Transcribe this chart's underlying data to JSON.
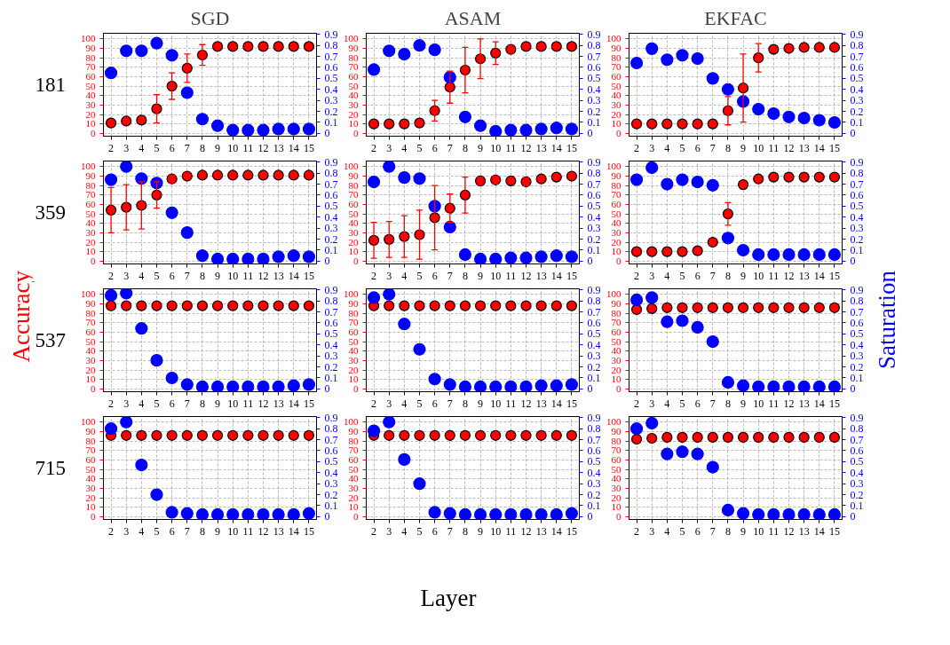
{
  "chart_data": [
    {
      "type": "scatter",
      "title": "SGD",
      "annotations": [
        "181"
      ],
      "x": [
        2,
        3,
        4,
        5,
        6,
        7,
        8,
        9,
        10,
        11,
        12,
        13,
        14,
        15
      ],
      "xlim": [
        1.5,
        15.5
      ],
      "xticks": [
        2,
        3,
        4,
        5,
        6,
        7,
        8,
        9,
        10,
        11,
        12,
        13,
        14,
        15
      ],
      "ylim": [
        -3,
        106
      ],
      "yticks": [
        0,
        10,
        20,
        30,
        40,
        50,
        60,
        70,
        80,
        90,
        100
      ],
      "y2lim": [
        -0.025,
        0.91
      ],
      "y2ticks": [
        0,
        0.1,
        0.2,
        0.3,
        0.4,
        0.5,
        0.6,
        0.7,
        0.8,
        0.9
      ],
      "grid": true,
      "marker": "circle",
      "series": [
        {
          "color": "#ff0000",
          "values": [
            11,
            13,
            14,
            26,
            50,
            69,
            83,
            92,
            92,
            92,
            92,
            92,
            92,
            92
          ],
          "errors": [
            1,
            1,
            3,
            15,
            14,
            15,
            11,
            null,
            null,
            null,
            null,
            null,
            null,
            null
          ]
        },
        {
          "color": "#0000ff",
          "axis": "y2",
          "values": [
            0.55,
            0.75,
            0.75,
            0.82,
            0.71,
            0.37,
            0.13,
            0.07,
            0.03,
            0.03,
            0.03,
            0.04,
            0.04,
            0.04
          ]
        }
      ]
    },
    {
      "type": "scatter",
      "title": "ASAM",
      "x": [
        2,
        3,
        4,
        5,
        6,
        7,
        8,
        9,
        10,
        11,
        12,
        13,
        14,
        15
      ],
      "xlim": [
        1.5,
        15.5
      ],
      "xticks": [
        2,
        3,
        4,
        5,
        6,
        7,
        8,
        9,
        10,
        11,
        12,
        13,
        14,
        15
      ],
      "ylim": [
        -3,
        106
      ],
      "yticks": [
        0,
        10,
        20,
        30,
        40,
        50,
        60,
        70,
        80,
        90,
        100
      ],
      "y2lim": [
        -0.025,
        0.91
      ],
      "y2ticks": [
        0,
        0.1,
        0.2,
        0.3,
        0.4,
        0.5,
        0.6,
        0.7,
        0.8,
        0.9
      ],
      "grid": true,
      "marker": "circle",
      "series": [
        {
          "color": "#ff0000",
          "values": [
            10,
            10,
            10,
            11,
            24,
            49,
            67,
            79,
            85,
            89,
            92,
            92,
            92,
            92
          ],
          "errors": [
            null,
            null,
            null,
            1,
            11,
            17,
            24,
            21,
            12,
            4,
            null,
            null,
            null,
            null
          ]
        },
        {
          "color": "#0000ff",
          "axis": "y2",
          "values": [
            0.58,
            0.75,
            0.72,
            0.8,
            0.76,
            0.51,
            0.15,
            0.07,
            0.02,
            0.03,
            0.03,
            0.04,
            0.05,
            0.04
          ]
        }
      ]
    },
    {
      "type": "scatter",
      "title": "EKFAC",
      "x": [
        2,
        3,
        4,
        5,
        6,
        7,
        8,
        9,
        10,
        11,
        12,
        13,
        14,
        15
      ],
      "xlim": [
        1.5,
        15.5
      ],
      "xticks": [
        2,
        3,
        4,
        5,
        6,
        7,
        8,
        9,
        10,
        11,
        12,
        13,
        14,
        15
      ],
      "ylim": [
        -3,
        106
      ],
      "yticks": [
        0,
        10,
        20,
        30,
        40,
        50,
        60,
        70,
        80,
        90,
        100
      ],
      "y2lim": [
        -0.025,
        0.91
      ],
      "y2ticks": [
        0,
        0.1,
        0.2,
        0.3,
        0.4,
        0.5,
        0.6,
        0.7,
        0.8,
        0.9
      ],
      "grid": true,
      "marker": "circle",
      "series": [
        {
          "color": "#ff0000",
          "values": [
            10,
            10,
            10,
            10,
            10,
            10,
            24,
            48,
            80,
            89,
            90,
            91,
            91,
            91
          ],
          "errors": [
            null,
            null,
            null,
            null,
            null,
            null,
            15,
            36,
            15,
            null,
            null,
            null,
            null,
            null
          ]
        },
        {
          "color": "#0000ff",
          "axis": "y2",
          "values": [
            0.64,
            0.77,
            0.67,
            0.71,
            0.68,
            0.5,
            0.4,
            0.29,
            0.22,
            0.18,
            0.15,
            0.14,
            0.12,
            0.1
          ]
        }
      ]
    },
    {
      "type": "scatter",
      "annotations": [
        "359"
      ],
      "x": [
        2,
        3,
        4,
        5,
        6,
        7,
        8,
        9,
        10,
        11,
        12,
        13,
        14,
        15
      ],
      "xlim": [
        1.5,
        15.5
      ],
      "xticks": [
        2,
        3,
        4,
        5,
        6,
        7,
        8,
        9,
        10,
        11,
        12,
        13,
        14,
        15
      ],
      "ylim": [
        -3,
        106
      ],
      "yticks": [
        0,
        10,
        20,
        30,
        40,
        50,
        60,
        70,
        80,
        90,
        100
      ],
      "y2lim": [
        -0.025,
        0.91
      ],
      "y2ticks": [
        0,
        0.1,
        0.2,
        0.3,
        0.4,
        0.5,
        0.6,
        0.7,
        0.8,
        0.9
      ],
      "grid": true,
      "marker": "circle",
      "series": [
        {
          "color": "#ff0000",
          "values": [
            54,
            57,
            59,
            70,
            87,
            90,
            91,
            91,
            91,
            91,
            91,
            91,
            91,
            91
          ],
          "errors": [
            24,
            24,
            25,
            14,
            4,
            null,
            null,
            null,
            null,
            null,
            null,
            null,
            null,
            null
          ]
        },
        {
          "color": "#0000ff",
          "axis": "y2",
          "values": [
            0.74,
            0.86,
            0.75,
            0.71,
            0.44,
            0.26,
            0.05,
            0.02,
            0.02,
            0.02,
            0.02,
            0.04,
            0.05,
            0.04
          ]
        }
      ]
    },
    {
      "type": "scatter",
      "x": [
        2,
        3,
        4,
        5,
        6,
        7,
        8,
        9,
        10,
        11,
        12,
        13,
        14,
        15
      ],
      "xlim": [
        1.5,
        15.5
      ],
      "xticks": [
        2,
        3,
        4,
        5,
        6,
        7,
        8,
        9,
        10,
        11,
        12,
        13,
        14,
        15
      ],
      "ylim": [
        -3,
        106
      ],
      "yticks": [
        0,
        10,
        20,
        30,
        40,
        50,
        60,
        70,
        80,
        90,
        100
      ],
      "y2lim": [
        -0.025,
        0.91
      ],
      "y2ticks": [
        0,
        0.1,
        0.2,
        0.3,
        0.4,
        0.5,
        0.6,
        0.7,
        0.8,
        0.9
      ],
      "grid": true,
      "marker": "circle",
      "series": [
        {
          "color": "#ff0000",
          "values": [
            22,
            23,
            26,
            28,
            46,
            56,
            70,
            85,
            86,
            85,
            84,
            87,
            89,
            90
          ],
          "errors": [
            19,
            19,
            22,
            26,
            34,
            15,
            19,
            4,
            4,
            3,
            4,
            null,
            null,
            null
          ]
        },
        {
          "color": "#0000ff",
          "axis": "y2",
          "values": [
            0.72,
            0.86,
            0.76,
            0.75,
            0.5,
            0.31,
            0.06,
            0.02,
            0.02,
            0.03,
            0.03,
            0.04,
            0.05,
            0.04
          ]
        }
      ]
    },
    {
      "type": "scatter",
      "x": [
        2,
        3,
        4,
        5,
        6,
        7,
        8,
        9,
        10,
        11,
        12,
        13,
        14,
        15
      ],
      "xlim": [
        1.5,
        15.5
      ],
      "xticks": [
        2,
        3,
        4,
        5,
        6,
        7,
        8,
        9,
        10,
        11,
        12,
        13,
        14,
        15
      ],
      "ylim": [
        -3,
        106
      ],
      "yticks": [
        0,
        10,
        20,
        30,
        40,
        50,
        60,
        70,
        80,
        90,
        100
      ],
      "y2lim": [
        -0.025,
        0.91
      ],
      "y2ticks": [
        0,
        0.1,
        0.2,
        0.3,
        0.4,
        0.5,
        0.6,
        0.7,
        0.8,
        0.9
      ],
      "grid": true,
      "marker": "circle",
      "series": [
        {
          "color": "#ff0000",
          "values": [
            10,
            10,
            10,
            10,
            11,
            20,
            50,
            81,
            87,
            89,
            89,
            89,
            89,
            89
          ],
          "errors": [
            null,
            null,
            null,
            null,
            null,
            3,
            12,
            null,
            null,
            null,
            null,
            null,
            null,
            null
          ]
        },
        {
          "color": "#0000ff",
          "axis": "y2",
          "values": [
            0.74,
            0.85,
            0.7,
            0.74,
            0.72,
            0.69,
            0.21,
            0.1,
            0.06,
            0.06,
            0.06,
            0.06,
            0.06,
            0.06
          ]
        }
      ]
    },
    {
      "type": "scatter",
      "annotations": [
        "537"
      ],
      "ylabel": "Accuracy",
      "x": [
        2,
        3,
        4,
        5,
        6,
        7,
        8,
        9,
        10,
        11,
        12,
        13,
        14,
        15
      ],
      "xlim": [
        1.5,
        15.5
      ],
      "xticks": [
        2,
        3,
        4,
        5,
        6,
        7,
        8,
        9,
        10,
        11,
        12,
        13,
        14,
        15
      ],
      "ylim": [
        -3,
        106
      ],
      "yticks": [
        0,
        10,
        20,
        30,
        40,
        50,
        60,
        70,
        80,
        90,
        100
      ],
      "y2lim": [
        -0.025,
        0.91
      ],
      "y2ticks": [
        0,
        0.1,
        0.2,
        0.3,
        0.4,
        0.5,
        0.6,
        0.7,
        0.8,
        0.9
      ],
      "grid": true,
      "marker": "circle",
      "series": [
        {
          "color": "#ff0000",
          "values": [
            88,
            88,
            88,
            88,
            88,
            88,
            88,
            88,
            88,
            88,
            88,
            88,
            88,
            88
          ]
        },
        {
          "color": "#0000ff",
          "axis": "y2",
          "values": [
            0.85,
            0.87,
            0.55,
            0.26,
            0.1,
            0.04,
            0.02,
            0.02,
            0.02,
            0.02,
            0.02,
            0.02,
            0.03,
            0.04
          ]
        }
      ]
    },
    {
      "type": "scatter",
      "x": [
        2,
        3,
        4,
        5,
        6,
        7,
        8,
        9,
        10,
        11,
        12,
        13,
        14,
        15
      ],
      "xlim": [
        1.5,
        15.5
      ],
      "xticks": [
        2,
        3,
        4,
        5,
        6,
        7,
        8,
        9,
        10,
        11,
        12,
        13,
        14,
        15
      ],
      "ylim": [
        -3,
        106
      ],
      "yticks": [
        0,
        10,
        20,
        30,
        40,
        50,
        60,
        70,
        80,
        90,
        100
      ],
      "y2lim": [
        -0.025,
        0.91
      ],
      "y2ticks": [
        0,
        0.1,
        0.2,
        0.3,
        0.4,
        0.5,
        0.6,
        0.7,
        0.8,
        0.9
      ],
      "grid": true,
      "marker": "circle",
      "series": [
        {
          "color": "#ff0000",
          "values": [
            88,
            88,
            88,
            88,
            88,
            88,
            88,
            88,
            88,
            88,
            88,
            88,
            88,
            88
          ]
        },
        {
          "color": "#0000ff",
          "axis": "y2",
          "values": [
            0.83,
            0.86,
            0.59,
            0.36,
            0.09,
            0.04,
            0.02,
            0.02,
            0.02,
            0.02,
            0.02,
            0.03,
            0.03,
            0.04
          ]
        }
      ]
    },
    {
      "type": "scatter",
      "y2label": "Saturation",
      "x": [
        2,
        3,
        4,
        5,
        6,
        7,
        8,
        9,
        10,
        11,
        12,
        13,
        14,
        15
      ],
      "xlim": [
        1.5,
        15.5
      ],
      "xticks": [
        2,
        3,
        4,
        5,
        6,
        7,
        8,
        9,
        10,
        11,
        12,
        13,
        14,
        15
      ],
      "ylim": [
        -3,
        106
      ],
      "yticks": [
        0,
        10,
        20,
        30,
        40,
        50,
        60,
        70,
        80,
        90,
        100
      ],
      "y2lim": [
        -0.025,
        0.91
      ],
      "y2ticks": [
        0,
        0.1,
        0.2,
        0.3,
        0.4,
        0.5,
        0.6,
        0.7,
        0.8,
        0.9
      ],
      "grid": true,
      "marker": "circle",
      "series": [
        {
          "color": "#ff0000",
          "values": [
            84,
            85,
            86,
            86,
            86,
            86,
            86,
            86,
            86,
            86,
            86,
            86,
            86,
            86
          ]
        },
        {
          "color": "#0000ff",
          "axis": "y2",
          "values": [
            0.81,
            0.83,
            0.61,
            0.62,
            0.56,
            0.43,
            0.06,
            0.03,
            0.02,
            0.02,
            0.02,
            0.02,
            0.02,
            0.02
          ]
        }
      ]
    },
    {
      "type": "scatter",
      "annotations": [
        "715"
      ],
      "x": [
        2,
        3,
        4,
        5,
        6,
        7,
        8,
        9,
        10,
        11,
        12,
        13,
        14,
        15
      ],
      "xlim": [
        1.5,
        15.5
      ],
      "xticks": [
        2,
        3,
        4,
        5,
        6,
        7,
        8,
        9,
        10,
        11,
        12,
        13,
        14,
        15
      ],
      "ylim": [
        -3,
        106
      ],
      "yticks": [
        0,
        10,
        20,
        30,
        40,
        50,
        60,
        70,
        80,
        90,
        100
      ],
      "y2lim": [
        -0.025,
        0.91
      ],
      "y2ticks": [
        0,
        0.1,
        0.2,
        0.3,
        0.4,
        0.5,
        0.6,
        0.7,
        0.8,
        0.9
      ],
      "grid": true,
      "marker": "circle",
      "series": [
        {
          "color": "#ff0000",
          "values": [
            86,
            86,
            86,
            86,
            86,
            86,
            86,
            86,
            86,
            86,
            86,
            86,
            86,
            86
          ]
        },
        {
          "color": "#0000ff",
          "axis": "y2",
          "values": [
            0.8,
            0.86,
            0.47,
            0.2,
            0.04,
            0.03,
            0.02,
            0.02,
            0.02,
            0.02,
            0.02,
            0.02,
            0.02,
            0.03
          ]
        }
      ]
    },
    {
      "type": "scatter",
      "xlabel": "Layer",
      "x": [
        2,
        3,
        4,
        5,
        6,
        7,
        8,
        9,
        10,
        11,
        12,
        13,
        14,
        15
      ],
      "xlim": [
        1.5,
        15.5
      ],
      "xticks": [
        2,
        3,
        4,
        5,
        6,
        7,
        8,
        9,
        10,
        11,
        12,
        13,
        14,
        15
      ],
      "ylim": [
        -3,
        106
      ],
      "yticks": [
        0,
        10,
        20,
        30,
        40,
        50,
        60,
        70,
        80,
        90,
        100
      ],
      "y2lim": [
        -0.025,
        0.91
      ],
      "y2ticks": [
        0,
        0.1,
        0.2,
        0.3,
        0.4,
        0.5,
        0.6,
        0.7,
        0.8,
        0.9
      ],
      "grid": true,
      "marker": "circle",
      "series": [
        {
          "color": "#ff0000",
          "values": [
            86,
            86,
            86,
            86,
            86,
            86,
            86,
            86,
            86,
            86,
            86,
            86,
            86,
            86
          ]
        },
        {
          "color": "#0000ff",
          "axis": "y2",
          "values": [
            0.78,
            0.86,
            0.52,
            0.3,
            0.04,
            0.03,
            0.02,
            0.02,
            0.02,
            0.02,
            0.02,
            0.02,
            0.02,
            0.03
          ]
        }
      ]
    },
    {
      "type": "scatter",
      "x": [
        2,
        3,
        4,
        5,
        6,
        7,
        8,
        9,
        10,
        11,
        12,
        13,
        14,
        15
      ],
      "xlim": [
        1.5,
        15.5
      ],
      "xticks": [
        2,
        3,
        4,
        5,
        6,
        7,
        8,
        9,
        10,
        11,
        12,
        13,
        14,
        15
      ],
      "ylim": [
        -3,
        106
      ],
      "yticks": [
        0,
        10,
        20,
        30,
        40,
        50,
        60,
        70,
        80,
        90,
        100
      ],
      "y2lim": [
        -0.025,
        0.91
      ],
      "y2ticks": [
        0,
        0.1,
        0.2,
        0.3,
        0.4,
        0.5,
        0.6,
        0.7,
        0.8,
        0.9
      ],
      "grid": true,
      "marker": "circle",
      "series": [
        {
          "color": "#ff0000",
          "values": [
            82,
            83,
            84,
            84,
            84,
            84,
            84,
            84,
            84,
            84,
            84,
            84,
            84,
            84
          ]
        },
        {
          "color": "#0000ff",
          "axis": "y2",
          "values": [
            0.8,
            0.85,
            0.57,
            0.59,
            0.57,
            0.45,
            0.06,
            0.03,
            0.02,
            0.02,
            0.02,
            0.02,
            0.02,
            0.02
          ]
        }
      ]
    }
  ]
}
